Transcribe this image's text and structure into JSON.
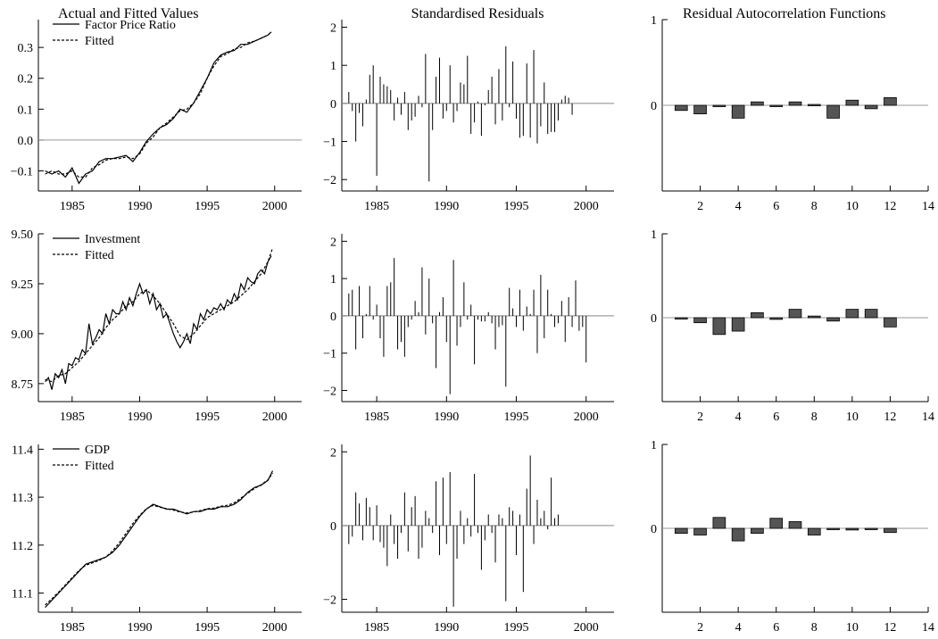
{
  "chart_data": [
    {
      "type": "line",
      "title": "Actual and Fitted Values",
      "x_ticks": [
        1985,
        1990,
        1995,
        2000
      ],
      "y_ticks": [
        -0.1,
        0.0,
        0.1,
        0.2,
        0.3
      ],
      "y_tick_labels": [
        "−0.1",
        "0.0",
        "0.1",
        "0.2",
        "0.3"
      ],
      "xlim": [
        1982.5,
        2002
      ],
      "ylim": [
        -0.165,
        0.39
      ],
      "zero_line": true,
      "legend_position": "top-left",
      "series": [
        {
          "name": "Factor Price Ratio",
          "style": "solid",
          "x": [
            1983.0,
            1983.5,
            1984.0,
            1984.5,
            1985.0,
            1985.5,
            1986.0,
            1986.5,
            1987.0,
            1987.5,
            1988.0,
            1988.5,
            1989.0,
            1989.5,
            1990.0,
            1990.5,
            1991.0,
            1991.5,
            1992.0,
            1992.5,
            1993.0,
            1993.5,
            1994.0,
            1994.5,
            1995.0,
            1995.5,
            1996.0,
            1996.5,
            1997.0,
            1997.5,
            1998.0,
            1998.5,
            1999.0,
            1999.5,
            1999.75
          ],
          "y": [
            -0.1,
            -0.11,
            -0.1,
            -0.12,
            -0.09,
            -0.14,
            -0.11,
            -0.1,
            -0.07,
            -0.06,
            -0.06,
            -0.055,
            -0.05,
            -0.07,
            -0.04,
            -0.005,
            0.02,
            0.04,
            0.05,
            0.07,
            0.1,
            0.09,
            0.12,
            0.16,
            0.2,
            0.25,
            0.275,
            0.285,
            0.29,
            0.31,
            0.31,
            0.32,
            0.33,
            0.34,
            0.35
          ]
        },
        {
          "name": "Fitted",
          "style": "dashed",
          "x": [
            1983.0,
            1983.5,
            1984.0,
            1984.5,
            1985.0,
            1985.5,
            1986.0,
            1986.5,
            1987.0,
            1987.5,
            1988.0,
            1988.5,
            1989.0,
            1989.5,
            1990.0,
            1990.5,
            1991.0,
            1991.5,
            1992.0,
            1992.5,
            1993.0,
            1993.5,
            1994.0,
            1994.5,
            1995.0,
            1995.5,
            1996.0,
            1996.5,
            1997.0,
            1997.5,
            1998.0,
            1998.5,
            1999.0,
            1999.5,
            1999.75
          ],
          "y": [
            -0.11,
            -0.1,
            -0.11,
            -0.11,
            -0.1,
            -0.12,
            -0.12,
            -0.09,
            -0.08,
            -0.065,
            -0.06,
            -0.06,
            -0.055,
            -0.06,
            -0.045,
            -0.01,
            0.01,
            0.04,
            0.055,
            0.075,
            0.095,
            0.1,
            0.12,
            0.15,
            0.2,
            0.24,
            0.27,
            0.28,
            0.295,
            0.3,
            0.315,
            0.32,
            0.33,
            0.34,
            0.35
          ]
        }
      ]
    },
    {
      "type": "bar",
      "title": "Standardised Residuals",
      "x_ticks": [
        1985,
        1990,
        1995,
        2000
      ],
      "y_ticks": [
        -2,
        -1,
        0,
        1,
        2
      ],
      "y_tick_labels": [
        "−2",
        "−1",
        "0",
        "1",
        "2"
      ],
      "xlim": [
        1982.5,
        2002
      ],
      "ylim": [
        -2.3,
        2.2
      ],
      "x_start": 1983.0,
      "x_step": 0.25,
      "values": [
        0.3,
        -0.2,
        -1.0,
        -0.25,
        -0.6,
        0.1,
        0.75,
        1.0,
        -1.9,
        0.7,
        0.5,
        0.45,
        0.35,
        -0.45,
        0.15,
        -0.3,
        0.3,
        -0.7,
        -0.45,
        -0.35,
        0.2,
        -0.1,
        1.3,
        -2.05,
        -0.7,
        0.7,
        1.2,
        -0.4,
        -0.2,
        1.0,
        -0.5,
        -0.2,
        0.55,
        0.5,
        1.25,
        -0.8,
        -0.5,
        0.05,
        -0.85,
        -0.05,
        0.35,
        0.7,
        -0.55,
        0.9,
        -0.45,
        1.5,
        -0.1,
        1.1,
        -0.4,
        -0.9,
        -0.85,
        1.05,
        -0.9,
        1.4,
        -1.05,
        -0.6,
        0.55,
        -0.8,
        -0.75,
        -0.75,
        -0.45,
        0.1,
        0.2,
        0.15,
        -0.3
      ]
    },
    {
      "type": "bar",
      "title": "Residual Autocorrelation Functions",
      "x_ticks": [
        2,
        4,
        6,
        8,
        10,
        12,
        14
      ],
      "y_ticks": [
        0,
        1
      ],
      "y_tick_labels": [
        "0",
        "1"
      ],
      "xlim": [
        0,
        14
      ],
      "ylim": [
        -1,
        1
      ],
      "lags": [
        1,
        2,
        3,
        4,
        5,
        6,
        7,
        8,
        9,
        10,
        11,
        12
      ],
      "values": [
        -0.06,
        -0.1,
        -0.01,
        -0.15,
        0.04,
        -0.01,
        0.04,
        0.01,
        -0.15,
        0.06,
        -0.04,
        0.09
      ]
    },
    {
      "type": "line",
      "x_ticks": [
        1985,
        1990,
        1995,
        2000
      ],
      "y_ticks": [
        8.75,
        9.0,
        9.25,
        9.5
      ],
      "y_tick_labels": [
        "8.75",
        "9.00",
        "9.25",
        "9.50"
      ],
      "xlim": [
        1982.5,
        2002
      ],
      "ylim": [
        8.66,
        9.5
      ],
      "legend_position": "top-left",
      "series": [
        {
          "name": "Investment",
          "style": "solid",
          "x": [
            1983.0,
            1983.25,
            1983.5,
            1983.75,
            1984.0,
            1984.25,
            1984.5,
            1984.75,
            1985.0,
            1985.25,
            1985.5,
            1985.75,
            1986.0,
            1986.25,
            1986.5,
            1986.75,
            1987.0,
            1987.25,
            1987.5,
            1987.75,
            1988.0,
            1988.25,
            1988.5,
            1988.75,
            1989.0,
            1989.25,
            1989.5,
            1989.75,
            1990.0,
            1990.25,
            1990.5,
            1990.75,
            1991.0,
            1991.25,
            1991.5,
            1991.75,
            1992.0,
            1992.25,
            1992.5,
            1992.75,
            1993.0,
            1993.25,
            1993.5,
            1993.75,
            1994.0,
            1994.25,
            1994.5,
            1994.75,
            1995.0,
            1995.25,
            1995.5,
            1995.75,
            1996.0,
            1996.25,
            1996.5,
            1996.75,
            1997.0,
            1997.25,
            1997.5,
            1997.75,
            1998.0,
            1998.25,
            1998.5,
            1998.75,
            1999.0,
            1999.25,
            1999.5,
            1999.75
          ],
          "y": [
            8.76,
            8.78,
            8.72,
            8.8,
            8.78,
            8.82,
            8.75,
            8.85,
            8.84,
            8.88,
            8.87,
            8.92,
            8.9,
            9.05,
            8.95,
            8.98,
            9.02,
            9.0,
            9.1,
            9.05,
            9.12,
            9.1,
            9.1,
            9.16,
            9.12,
            9.18,
            9.14,
            9.2,
            9.25,
            9.2,
            9.22,
            9.15,
            9.2,
            9.12,
            9.15,
            9.08,
            9.1,
            9.05,
            9.0,
            8.96,
            8.93,
            8.96,
            9.0,
            8.95,
            9.05,
            9.02,
            9.1,
            9.07,
            9.12,
            9.1,
            9.13,
            9.12,
            9.15,
            9.12,
            9.17,
            9.15,
            9.2,
            9.17,
            9.25,
            9.22,
            9.28,
            9.26,
            9.25,
            9.3,
            9.32,
            9.3,
            9.36,
            9.39
          ]
        },
        {
          "name": "Fitted",
          "style": "dashed",
          "x": [
            1983.0,
            1983.5,
            1984.0,
            1984.5,
            1985.0,
            1985.5,
            1986.0,
            1986.5,
            1987.0,
            1987.5,
            1988.0,
            1988.5,
            1989.0,
            1989.5,
            1990.0,
            1990.5,
            1991.0,
            1991.5,
            1992.0,
            1992.5,
            1993.0,
            1993.5,
            1994.0,
            1994.5,
            1995.0,
            1995.5,
            1996.0,
            1996.5,
            1997.0,
            1997.5,
            1998.0,
            1998.5,
            1999.0,
            1999.5,
            1999.85
          ],
          "y": [
            8.77,
            8.76,
            8.79,
            8.8,
            8.83,
            8.86,
            8.9,
            8.94,
            8.98,
            9.03,
            9.07,
            9.1,
            9.14,
            9.16,
            9.2,
            9.22,
            9.19,
            9.15,
            9.1,
            9.05,
            8.99,
            8.97,
            9.0,
            9.04,
            9.08,
            9.1,
            9.12,
            9.14,
            9.16,
            9.19,
            9.22,
            9.26,
            9.3,
            9.36,
            9.43
          ]
        }
      ]
    },
    {
      "type": "bar",
      "x_ticks": [
        1985,
        1990,
        1995,
        2000
      ],
      "y_ticks": [
        -2,
        -1,
        0,
        1,
        2
      ],
      "y_tick_labels": [
        "−2",
        "−1",
        "0",
        "1",
        "2"
      ],
      "xlim": [
        1982.5,
        2002
      ],
      "ylim": [
        -2.3,
        2.2
      ],
      "x_start": 1983.0,
      "x_step": 0.25,
      "values": [
        0.6,
        0.7,
        -0.9,
        0.8,
        -0.6,
        0.05,
        0.8,
        -0.1,
        0.3,
        -0.6,
        -1.1,
        0.8,
        0.9,
        1.55,
        -0.9,
        -0.7,
        -1.1,
        -0.3,
        -0.1,
        0.4,
        0.1,
        1.3,
        -0.5,
        1.0,
        -0.2,
        -1.4,
        0.1,
        0.5,
        -0.7,
        -2.1,
        1.5,
        -0.8,
        -0.3,
        0.9,
        -0.1,
        0.3,
        -1.3,
        -0.1,
        -0.15,
        -0.15,
        0.1,
        -0.2,
        -0.9,
        -0.3,
        -0.25,
        -1.9,
        0.75,
        0.2,
        -0.3,
        0.7,
        -0.4,
        0.25,
        0.05,
        0.7,
        -1.0,
        1.1,
        -0.6,
        0.7,
        0.05,
        -0.3,
        -0.2,
        0.4,
        -0.7,
        0.5,
        -0.3,
        0.95,
        -0.4,
        -0.3,
        -1.25
      ]
    },
    {
      "type": "bar",
      "x_ticks": [
        2,
        4,
        6,
        8,
        10,
        12,
        14
      ],
      "y_ticks": [
        0,
        1
      ],
      "y_tick_labels": [
        "0",
        "1"
      ],
      "xlim": [
        0,
        14
      ],
      "ylim": [
        -1,
        1
      ],
      "lags": [
        1,
        2,
        3,
        4,
        5,
        6,
        7,
        8,
        9,
        10,
        11,
        12
      ],
      "values": [
        0.0,
        -0.06,
        -0.2,
        -0.16,
        0.06,
        -0.02,
        0.1,
        0.02,
        -0.04,
        0.1,
        0.1,
        -0.11
      ]
    },
    {
      "type": "line",
      "x_ticks": [
        1985,
        1990,
        1995,
        2000
      ],
      "y_ticks": [
        11.1,
        11.2,
        11.3,
        11.4
      ],
      "y_tick_labels": [
        "11.1",
        "11.2",
        "11.3",
        "11.4"
      ],
      "xlim": [
        1982.5,
        2002
      ],
      "ylim": [
        11.06,
        11.41
      ],
      "legend_position": "top-left",
      "series": [
        {
          "name": "GDP",
          "style": "solid",
          "x": [
            1983.0,
            1983.5,
            1984.0,
            1984.5,
            1985.0,
            1985.5,
            1986.0,
            1986.5,
            1987.0,
            1987.5,
            1988.0,
            1988.5,
            1989.0,
            1989.5,
            1990.0,
            1990.5,
            1991.0,
            1991.5,
            1992.0,
            1992.5,
            1993.0,
            1993.5,
            1994.0,
            1994.5,
            1995.0,
            1995.5,
            1996.0,
            1996.5,
            1997.0,
            1997.5,
            1998.0,
            1998.5,
            1999.0,
            1999.5,
            1999.85
          ],
          "y": [
            11.07,
            11.085,
            11.1,
            11.115,
            11.13,
            11.145,
            11.16,
            11.165,
            11.17,
            11.175,
            11.185,
            11.2,
            11.22,
            11.24,
            11.26,
            11.275,
            11.285,
            11.28,
            11.275,
            11.275,
            11.27,
            11.265,
            11.27,
            11.27,
            11.275,
            11.275,
            11.28,
            11.28,
            11.285,
            11.295,
            11.31,
            11.32,
            11.325,
            11.335,
            11.355
          ]
        },
        {
          "name": "Fitted",
          "style": "dashed",
          "x": [
            1983.0,
            1983.5,
            1984.0,
            1984.5,
            1985.0,
            1985.5,
            1986.0,
            1986.5,
            1987.0,
            1987.5,
            1988.0,
            1988.5,
            1989.0,
            1989.5,
            1990.0,
            1990.5,
            1991.0,
            1991.5,
            1992.0,
            1992.5,
            1993.0,
            1993.5,
            1994.0,
            1994.5,
            1995.0,
            1995.5,
            1996.0,
            1996.5,
            1997.0,
            1997.5,
            1998.0,
            1998.5,
            1999.0,
            1999.5,
            1999.85
          ],
          "y": [
            11.075,
            11.088,
            11.102,
            11.117,
            11.132,
            11.147,
            11.158,
            11.163,
            11.168,
            11.175,
            11.188,
            11.205,
            11.225,
            11.245,
            11.262,
            11.276,
            11.283,
            11.279,
            11.276,
            11.273,
            11.269,
            11.267,
            11.269,
            11.272,
            11.276,
            11.277,
            11.281,
            11.283,
            11.288,
            11.298,
            11.308,
            11.318,
            11.326,
            11.336,
            11.35
          ]
        }
      ]
    },
    {
      "type": "bar",
      "x_ticks": [
        1985,
        1990,
        1995,
        2000
      ],
      "y_ticks": [
        -2,
        0,
        2
      ],
      "y_tick_labels": [
        "−2",
        "0",
        "2"
      ],
      "xlim": [
        1982.5,
        2002
      ],
      "ylim": [
        -2.35,
        2.2
      ],
      "x_start": 1983.0,
      "x_step": 0.25,
      "values": [
        -0.5,
        -0.3,
        0.9,
        0.6,
        -0.4,
        0.75,
        0.5,
        -0.4,
        0.55,
        -0.45,
        -0.6,
        -1.1,
        0.3,
        -0.5,
        -0.9,
        -0.2,
        0.9,
        -0.7,
        0.5,
        0.8,
        -0.9,
        -0.6,
        0.4,
        0.2,
        -0.2,
        1.2,
        -0.8,
        1.3,
        -0.5,
        1.45,
        -2.2,
        -0.9,
        0.4,
        -0.5,
        0.2,
        -0.3,
        1.4,
        -0.2,
        -1.2,
        -0.4,
        0.3,
        -0.2,
        -1.0,
        0.3,
        0.2,
        -2.05,
        0.5,
        0.4,
        -0.8,
        0.3,
        -1.8,
        1.0,
        1.9,
        -0.5,
        0.7,
        0.2,
        0.4,
        -0.1,
        1.3,
        0.2,
        0.3
      ]
    },
    {
      "type": "bar",
      "x_ticks": [
        2,
        4,
        6,
        8,
        10,
        12,
        14
      ],
      "y_ticks": [
        0,
        1
      ],
      "y_tick_labels": [
        "0",
        "1"
      ],
      "xlim": [
        0,
        14
      ],
      "ylim": [
        -1,
        1
      ],
      "lags": [
        1,
        2,
        3,
        4,
        5,
        6,
        7,
        8,
        9,
        10,
        11,
        12
      ],
      "values": [
        -0.06,
        -0.08,
        0.13,
        -0.15,
        -0.06,
        0.12,
        0.08,
        -0.08,
        -0.01,
        -0.02,
        -0.01,
        -0.05
      ]
    }
  ]
}
